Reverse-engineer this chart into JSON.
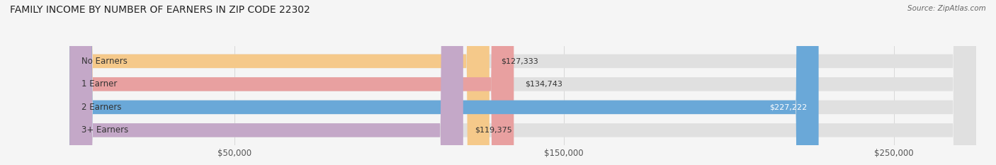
{
  "title": "FAMILY INCOME BY NUMBER OF EARNERS IN ZIP CODE 22302",
  "source": "Source: ZipAtlas.com",
  "categories": [
    "No Earners",
    "1 Earner",
    "2 Earners",
    "3+ Earners"
  ],
  "values": [
    127333,
    134743,
    227222,
    119375
  ],
  "bar_colors": [
    "#f5c98a",
    "#e8a0a0",
    "#6aa8d8",
    "#c4a8c8"
  ],
  "bar_bg_color": "#e0e0e0",
  "value_labels": [
    "$127,333",
    "$134,743",
    "$227,222",
    "$119,375"
  ],
  "xmin": 0,
  "xmax": 275000,
  "xticks": [
    50000,
    150000,
    250000
  ],
  "xtick_labels": [
    "$50,000",
    "$150,000",
    "$250,000"
  ],
  "background_color": "#f5f5f5",
  "title_fontsize": 10,
  "label_fontsize": 8.5,
  "value_fontsize": 8,
  "source_fontsize": 7.5
}
